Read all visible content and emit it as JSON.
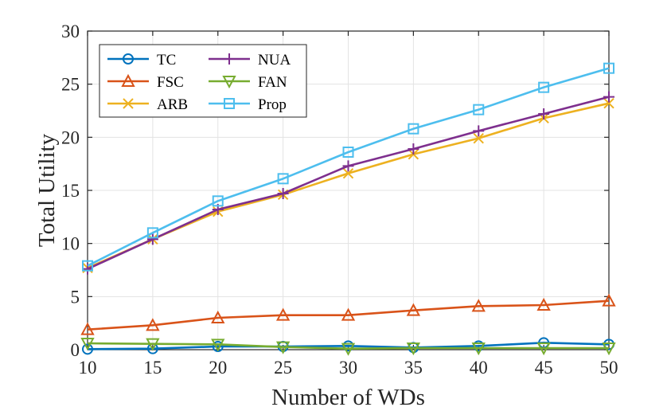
{
  "chart_data": {
    "type": "line",
    "title": "",
    "xlabel": "Number of WDs",
    "ylabel": "Total Utility",
    "x": [
      10,
      15,
      20,
      25,
      30,
      35,
      40,
      45,
      50
    ],
    "xlim": [
      10,
      50
    ],
    "ylim": [
      0,
      30
    ],
    "xticks": [
      "10",
      "15",
      "20",
      "25",
      "30",
      "35",
      "40",
      "45",
      "50"
    ],
    "yticks": [
      "0",
      "5",
      "10",
      "15",
      "20",
      "25",
      "30"
    ],
    "grid": true,
    "legend_position": "top-left",
    "series": [
      {
        "name": "TC",
        "color": "#0072BD",
        "marker": "circle",
        "values": [
          0.05,
          0.1,
          0.3,
          0.3,
          0.35,
          0.2,
          0.35,
          0.65,
          0.5
        ]
      },
      {
        "name": "FSC",
        "color": "#D95319",
        "marker": "triangle",
        "values": [
          1.9,
          2.3,
          3.0,
          3.25,
          3.25,
          3.7,
          4.1,
          4.2,
          4.6
        ]
      },
      {
        "name": "ARB",
        "color": "#EDB120",
        "marker": "x",
        "values": [
          7.7,
          10.4,
          13.0,
          14.6,
          16.6,
          18.4,
          19.9,
          21.8,
          23.2
        ]
      },
      {
        "name": "NUA",
        "color": "#7E2F8E",
        "marker": "plus",
        "values": [
          7.6,
          10.4,
          13.2,
          14.7,
          17.3,
          18.9,
          20.6,
          22.2,
          23.8
        ]
      },
      {
        "name": "FAN",
        "color": "#77AC30",
        "marker": "triangle-down",
        "values": [
          0.6,
          0.55,
          0.5,
          0.25,
          0.1,
          0.15,
          0.15,
          0.15,
          0.15
        ]
      },
      {
        "name": "Prop",
        "color": "#4DBEEE",
        "marker": "square",
        "values": [
          7.9,
          11.0,
          14.0,
          16.1,
          18.6,
          20.8,
          22.6,
          24.7,
          26.5
        ]
      }
    ]
  }
}
